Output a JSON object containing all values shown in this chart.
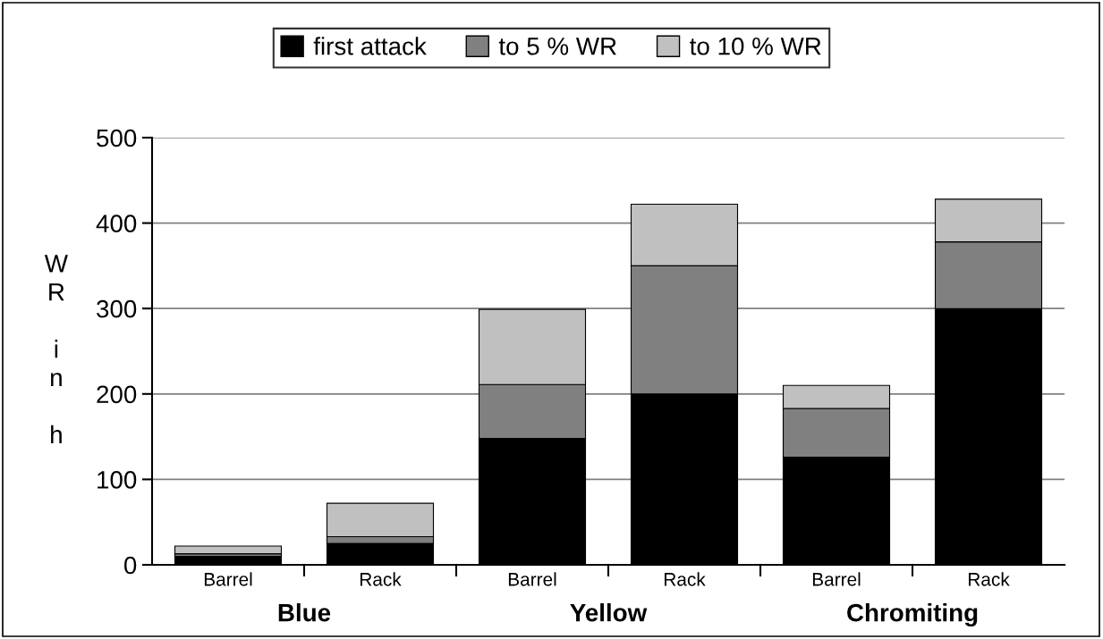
{
  "chart_data": {
    "type": "bar",
    "stacked": true,
    "ylabel": "WR in h",
    "categories": [
      "Barrel",
      "Rack",
      "Barrel",
      "Rack",
      "Barrel",
      "Rack"
    ],
    "annotations": [
      "Blue",
      "Yellow",
      "Chromiting"
    ],
    "series": [
      {
        "name": "first attack",
        "color": "#000000",
        "values": [
          10,
          25,
          148,
          200,
          126,
          300
        ]
      },
      {
        "name": "to 5 % WR",
        "color": "#808080",
        "values": [
          3,
          8,
          63,
          150,
          57,
          78
        ]
      },
      {
        "name": "to 10 % WR",
        "color": "#c0c0c0",
        "values": [
          9,
          39,
          88,
          72,
          27,
          50
        ]
      }
    ],
    "ylim": [
      0,
      500
    ],
    "yticks": [
      0,
      100,
      200,
      300,
      400,
      500
    ],
    "grid": "y",
    "legend": "top"
  }
}
